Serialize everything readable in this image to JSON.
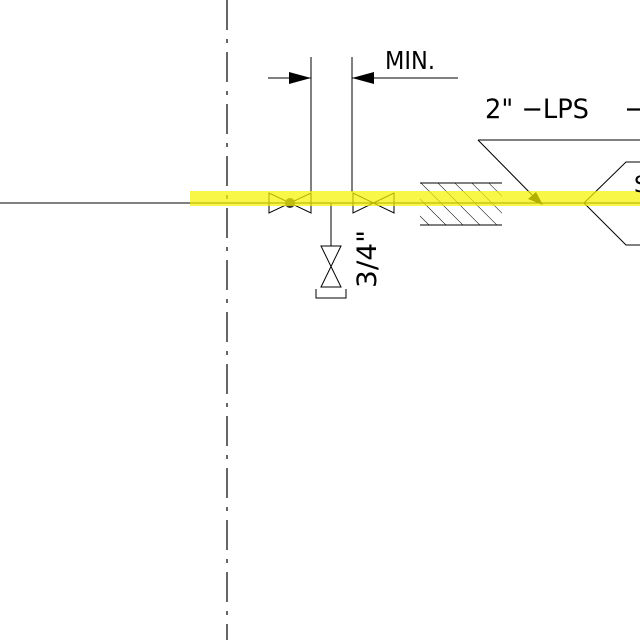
{
  "drawing": {
    "dimension_label": "MIN.",
    "pipe_label": "2\" −LPS",
    "trailing_label": "−",
    "branch_size_label": "3/4\"",
    "edge_label": "S"
  },
  "colors": {
    "background": "#ffffff",
    "line": "#000000",
    "highlight": "#f5f200"
  },
  "symbols": [
    "gate-valve-icon",
    "gate-valve-icon",
    "branch-valve-icon",
    "pipe-sleeve-hatch-icon",
    "flow-arrow-icon",
    "reducer-icon"
  ]
}
